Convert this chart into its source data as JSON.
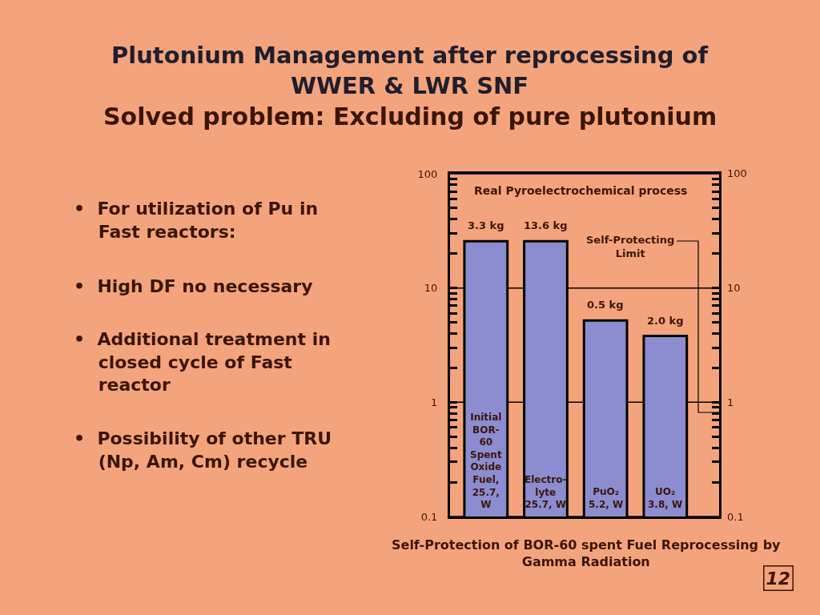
{
  "chart_data": {
    "type": "bar",
    "title": "Plutonium Management after reprocessing of\nWWER & LWR SNF",
    "subtitle": "Solved problem: Excluding of pure plutonium",
    "categories": [
      "Initial\nBOR-\n60\nSpent\nOxide\nFuel,\n25.7,\nW",
      "Electro-\nlyte\n25.7, W",
      "PuO₂\n5.2, W",
      "UO₂\n3.8, W"
    ],
    "values": [
      25.7,
      25.7,
      5.2,
      3.8
    ],
    "color": "#8c8cd0",
    "log": "y",
    "ylim": [
      0.1,
      100
    ],
    "yticks": [
      0.1,
      {
        "value": 0.2,
        "label": null
      },
      {
        "value": 0.3,
        "label": null
      },
      {
        "value": 0.4,
        "label": null
      },
      {
        "value": 0.5,
        "label": null
      },
      {
        "value": 0.6,
        "label": null
      },
      {
        "value": 0.7,
        "label": null
      },
      {
        "value": 0.8,
        "label": null
      },
      {
        "value": 0.9,
        "label": null
      },
      1,
      {
        "value": 2,
        "label": null
      },
      {
        "value": 3,
        "label": null
      },
      {
        "value": 4,
        "label": null
      },
      {
        "value": 5,
        "label": null
      },
      {
        "value": 6,
        "label": null
      },
      {
        "value": 7,
        "label": null
      },
      {
        "value": 8,
        "label": null
      },
      {
        "value": 9,
        "label": null
      },
      10,
      {
        "value": 20,
        "label": null
      },
      {
        "value": 30,
        "label": null
      },
      {
        "value": 40,
        "label": null
      },
      {
        "value": 50,
        "label": null
      },
      {
        "value": 60,
        "label": null
      },
      {
        "value": 70,
        "label": null
      },
      {
        "value": 80,
        "label": null
      },
      {
        "value": 90,
        "label": null
      },
      100
    ],
    "grid": "y",
    "tick_labels": "y",
    "annotations": [
      "Real Pyroelectrochemical process",
      {
        "text": "3.3 kg",
        "x": "Initial\nBOR-\n60\nSpent\nOxide\nFuel,\n25.7,\nW",
        "y": 25.7
      },
      {
        "text": "13.6 kg",
        "x": "Electro-\nlyte\n25.7, W",
        "y": 25.7
      },
      {
        "text": "0.5 kg",
        "x": "PuO₂\n5.2, W",
        "y": 5.2
      },
      {
        "text": "2.0 kg",
        "x": "UO₂\n3.8, W",
        "y": 3.8
      },
      "•  For utilization of Pu in\n    Fast reactors:",
      "•  High DF no necessary",
      "•  Additional treatment in\n    closed cycle of Fast\n    reactor",
      "•  Possibility of other TRU\n    (Np, Am, Cm) recycle",
      "Self-Protection of BOR-60 spent Fuel Reprocessing by\nGamma Radiation",
      "12",
      "Self-Protecting\nLimit",
      "100",
      "10",
      "1",
      "0.1"
    ]
  }
}
